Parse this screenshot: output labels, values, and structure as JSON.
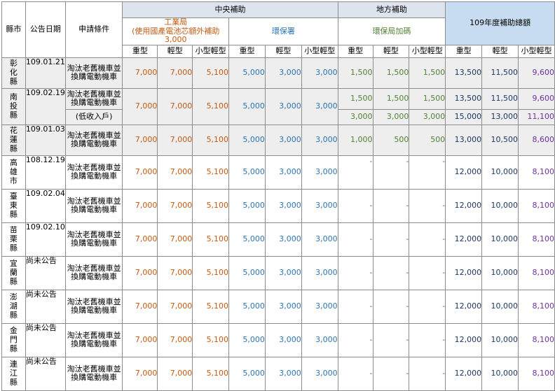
{
  "header": {
    "county": "縣市",
    "date": "公告日期",
    "condition": "申請條件",
    "central": "中央補助",
    "local": "地方補助",
    "total": "109年度補助總額",
    "industry_line1": "工業局",
    "industry_line2": "(使用國產電池芯額外補助3,000",
    "epa": "環保署",
    "local_epb": "環保局加碼",
    "col_heavy": "重型",
    "col_light": "輕型",
    "col_small": "小型輕型"
  },
  "rows": [
    {
      "county": "彰\n化\n縣",
      "date": "109.01.21",
      "condition": "淘汰老舊機車並\n換購電動機車",
      "industry": [
        "7,000",
        "7,000",
        "5,100"
      ],
      "epa": [
        "5,000",
        "3,000",
        "3,000"
      ],
      "local": [
        "1,500",
        "1,500",
        "1,500"
      ],
      "total": [
        "13,500",
        "11,500",
        "9,600"
      ]
    },
    {
      "county": "南\n投\n縣",
      "date": "109.02.19",
      "condition": "淘汰老舊機車並\n換購電動機車",
      "industry": [
        "7,000",
        "7,000",
        "5,100"
      ],
      "epa": [
        "5,000",
        "3,000",
        "3,000"
      ],
      "local": [
        "1,500",
        "1,500",
        "1,500"
      ],
      "total": [
        "13,500",
        "11,500",
        "9,600"
      ]
    },
    {
      "condition": "(低收入戶)",
      "local": [
        "3,000",
        "3,000",
        "3,000"
      ],
      "total": [
        "15,000",
        "13,000",
        "11,100"
      ]
    },
    {
      "county": "花\n蓮\n縣",
      "date": "109.01.03",
      "condition": "淘汰老舊機車並\n換購電動機車",
      "industry": [
        "7,000",
        "7,000",
        "5,100"
      ],
      "epa": [
        "5,000",
        "3,000",
        "3,000"
      ],
      "local": [
        "1,000",
        "500",
        "500"
      ],
      "total": [
        "13,000",
        "10,500",
        "8,600"
      ]
    },
    {
      "county": "高\n雄\n市",
      "date": "108.12.19",
      "condition": "淘汰老舊機車並\n換購電動機車",
      "industry": [
        "7,000",
        "7,000",
        "5,100"
      ],
      "epa": [
        "5,000",
        "3,000",
        "3,000"
      ],
      "local": [
        "-",
        "-",
        "-"
      ],
      "total": [
        "12,000",
        "10,000",
        "8,100"
      ]
    },
    {
      "county": "臺\n東\n縣",
      "date": "109.02.04",
      "condition": "淘汰老舊機車並\n換購電動機車",
      "industry": [
        "7,000",
        "7,000",
        "5,100"
      ],
      "epa": [
        "5,000",
        "3,000",
        "3,000"
      ],
      "local": [
        "-",
        "-",
        "-"
      ],
      "total": [
        "12,000",
        "10,000",
        "8,100"
      ]
    },
    {
      "county": "苗\n栗\n縣",
      "date": "109.02.10",
      "condition": "淘汰老舊機車並\n換購電動機車",
      "industry": [
        "7,000",
        "7,000",
        "5,100"
      ],
      "epa": [
        "5,000",
        "3,000",
        "3,000"
      ],
      "local": [
        "-",
        "-",
        "-"
      ],
      "total": [
        "12,000",
        "10,000",
        "8,100"
      ]
    },
    {
      "county": "宜\n蘭\n縣",
      "date": "尚未公告",
      "condition": "淘汰老舊機車並\n換購電動機車",
      "industry": [
        "7,000",
        "7,000",
        "5,100"
      ],
      "epa": [
        "5,000",
        "3,000",
        "3,000"
      ],
      "local": [
        "-",
        "-",
        "-"
      ],
      "total": [
        "12,000",
        "10,000",
        "8,100"
      ]
    },
    {
      "county": "澎\n湖\n縣",
      "date": "尚未公告",
      "condition": "淘汰老舊機車並\n換購電動機車",
      "industry": [
        "7,000",
        "7,000",
        "5,100"
      ],
      "epa": [
        "5,000",
        "3,000",
        "3,000"
      ],
      "local": [
        "-",
        "-",
        "-"
      ],
      "total": [
        "12,000",
        "10,000",
        "8,100"
      ]
    },
    {
      "county": "金\n門\n縣",
      "date": "尚未公告",
      "condition": "淘汰老舊機車並\n換購電動機車",
      "industry": [
        "7,000",
        "7,000",
        "5,100"
      ],
      "epa": [
        "5,000",
        "3,000",
        "3,000"
      ],
      "local": [
        "-",
        "-",
        "-"
      ],
      "total": [
        "12,000",
        "10,000",
        "8,100"
      ]
    },
    {
      "county": "連\n江\n縣",
      "date": "尚未公告",
      "condition": "淘汰老舊機車並\n換購電動機車",
      "industry": [
        "7,000",
        "7,000",
        "5,100"
      ],
      "epa": [
        "5,000",
        "3,000",
        "3,000"
      ],
      "local": [
        "-",
        "-",
        "-"
      ],
      "total": [
        "12,000",
        "10,000",
        "8,100"
      ]
    }
  ]
}
